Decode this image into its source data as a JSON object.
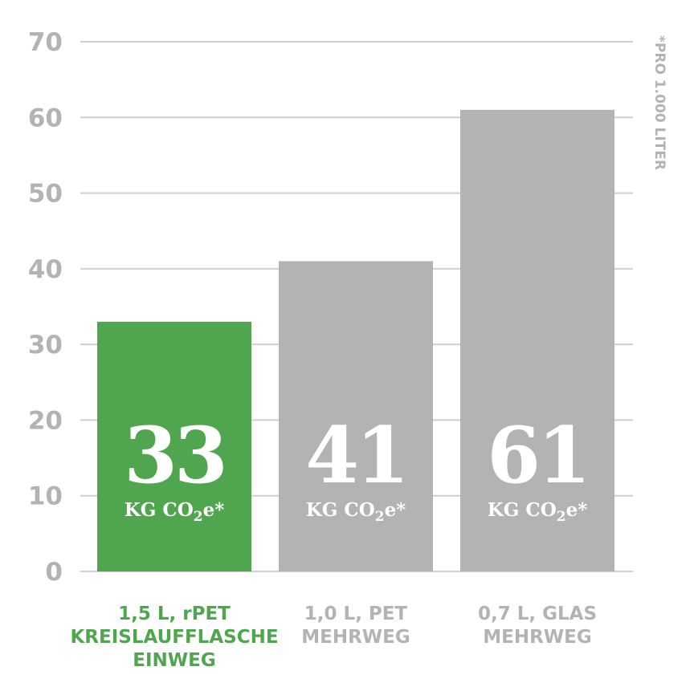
{
  "chart_data": {
    "type": "bar",
    "categories": [
      [
        "1,5 L, rPET",
        "KREISLAUFFLASCHE",
        "EINWEG"
      ],
      [
        "1,0 L, PET",
        "MEHRWEG"
      ],
      [
        "0,7 L, GLAS",
        "MEHRWEG"
      ]
    ],
    "values": [
      33,
      41,
      61
    ],
    "value_labels": [
      "33",
      "41",
      "61"
    ],
    "unit_label": {
      "pre": "KG CO",
      "sub": "2",
      "post": "e*"
    },
    "note": "*PRO 1.000 LITER",
    "ylim": [
      0,
      70
    ],
    "yticks": [
      "0",
      "10",
      "20",
      "30",
      "40",
      "50",
      "60",
      "70"
    ],
    "ytick_values": [
      0,
      10,
      20,
      30,
      40,
      50,
      60,
      70
    ],
    "grid": true,
    "colors": {
      "highlight": "#4fa64f",
      "bar": "#b3b3b3",
      "tick": "#b3b3b3",
      "grid": "#cfcfcf"
    }
  }
}
